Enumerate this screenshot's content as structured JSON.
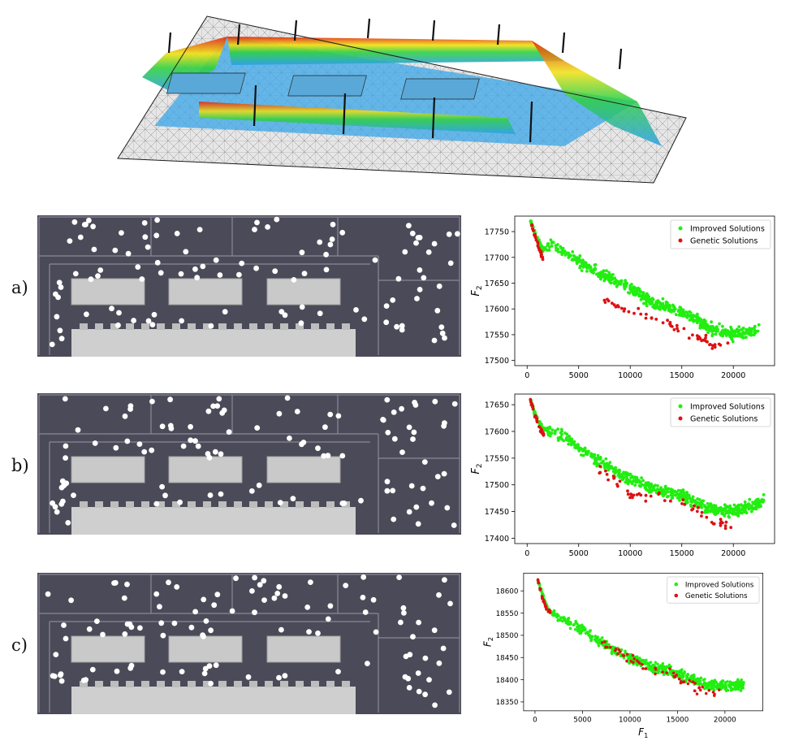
{
  "panels": [
    {
      "label": "a)"
    },
    {
      "label": "b)"
    },
    {
      "label": "c)"
    }
  ],
  "colors": {
    "improved": "#22ee11",
    "genetic": "#dd1111",
    "plan_floor": "#4b4a58",
    "plan_wall": "#8a8996",
    "plan_room": "#c9c9c9",
    "sensor": "#ffffff"
  },
  "chart_data": [
    {
      "type": "scatter",
      "xlabel": "",
      "ylabel": "F2",
      "xlim": [
        -1200,
        24000
      ],
      "ylim": [
        17490,
        17780
      ],
      "xticks": [
        0,
        5000,
        10000,
        15000,
        20000
      ],
      "yticks": [
        17500,
        17550,
        17600,
        17650,
        17700,
        17750
      ],
      "legend": {
        "position": "top-right",
        "entries": [
          "Improved Solutions",
          "Genetic Solutions"
        ]
      },
      "series": [
        {
          "name": "Improved Solutions",
          "color": "#22ee11",
          "anchors": [
            [
              300,
              17770
            ],
            [
              800,
              17745
            ],
            [
              1500,
              17715
            ],
            [
              2500,
              17725
            ],
            [
              4000,
              17705
            ],
            [
              6000,
              17680
            ],
            [
              8000,
              17660
            ],
            [
              10000,
              17640
            ],
            [
              12000,
              17615
            ],
            [
              14000,
              17600
            ],
            [
              16000,
              17585
            ],
            [
              18000,
              17560
            ],
            [
              20000,
              17550
            ],
            [
              22500,
              17560
            ]
          ]
        },
        {
          "name": "Genetic Solutions",
          "color": "#dd1111",
          "anchors": [
            [
              300,
              17770
            ],
            [
              700,
              17745
            ],
            [
              1200,
              17715
            ],
            [
              1600,
              17695
            ],
            [
              8000,
              17610
            ],
            [
              11000,
              17590
            ],
            [
              13000,
              17575
            ],
            [
              15000,
              17560
            ],
            [
              17000,
              17545
            ],
            [
              18000,
              17525
            ],
            [
              19500,
              17525
            ]
          ]
        }
      ]
    },
    {
      "type": "scatter",
      "xlabel": "",
      "ylabel": "F2",
      "xlim": [
        -1200,
        24000
      ],
      "ylim": [
        17390,
        17670
      ],
      "xticks": [
        0,
        5000,
        10000,
        15000,
        20000
      ],
      "yticks": [
        17400,
        17450,
        17500,
        17550,
        17600,
        17650
      ],
      "legend": {
        "position": "top-right",
        "entries": [
          "Improved Solutions",
          "Genetic Solutions"
        ]
      },
      "series": [
        {
          "name": "Improved Solutions",
          "color": "#22ee11",
          "anchors": [
            [
              300,
              17660
            ],
            [
              800,
              17630
            ],
            [
              1500,
              17605
            ],
            [
              3000,
              17595
            ],
            [
              5000,
              17570
            ],
            [
              7000,
              17545
            ],
            [
              9000,
              17520
            ],
            [
              11000,
              17505
            ],
            [
              13000,
              17490
            ],
            [
              15000,
              17480
            ],
            [
              17000,
              17460
            ],
            [
              19000,
              17450
            ],
            [
              21000,
              17455
            ],
            [
              23000,
              17470
            ]
          ]
        },
        {
          "name": "Genetic Solutions",
          "color": "#dd1111",
          "anchors": [
            [
              300,
              17660
            ],
            [
              700,
              17635
            ],
            [
              1200,
              17605
            ],
            [
              1600,
              17595
            ],
            [
              4500,
              17570
            ],
            [
              10000,
              17480
            ],
            [
              13000,
              17475
            ],
            [
              15000,
              17470
            ],
            [
              17000,
              17450
            ],
            [
              18000,
              17430
            ],
            [
              20000,
              17425
            ]
          ]
        }
      ]
    },
    {
      "type": "scatter",
      "xlabel": "F1",
      "ylabel": "F2",
      "xlim": [
        -1200,
        24000
      ],
      "ylim": [
        18330,
        18640
      ],
      "xticks": [
        0,
        5000,
        10000,
        15000,
        20000
      ],
      "yticks": [
        18350,
        18400,
        18450,
        18500,
        18550,
        18600
      ],
      "legend": {
        "position": "top-right",
        "entries": [
          "Improved Solutions",
          "Genetic Solutions"
        ]
      },
      "series": [
        {
          "name": "Improved Solutions",
          "color": "#22ee11",
          "anchors": [
            [
              300,
              18625
            ],
            [
              800,
              18590
            ],
            [
              1400,
              18555
            ],
            [
              5500,
              18505
            ],
            [
              8000,
              18470
            ],
            [
              10000,
              18450
            ],
            [
              12000,
              18430
            ],
            [
              14000,
              18420
            ],
            [
              16000,
              18405
            ],
            [
              18000,
              18390
            ],
            [
              20000,
              18385
            ],
            [
              22000,
              18390
            ]
          ]
        },
        {
          "name": "Genetic Solutions",
          "color": "#dd1111",
          "anchors": [
            [
              300,
              18625
            ],
            [
              700,
              18590
            ],
            [
              1300,
              18555
            ],
            [
              3000,
              18555
            ],
            [
              8000,
              18470
            ],
            [
              12000,
              18425
            ],
            [
              15000,
              18410
            ],
            [
              17000,
              18380
            ],
            [
              18000,
              18370
            ],
            [
              20000,
              18380
            ]
          ]
        }
      ]
    }
  ]
}
